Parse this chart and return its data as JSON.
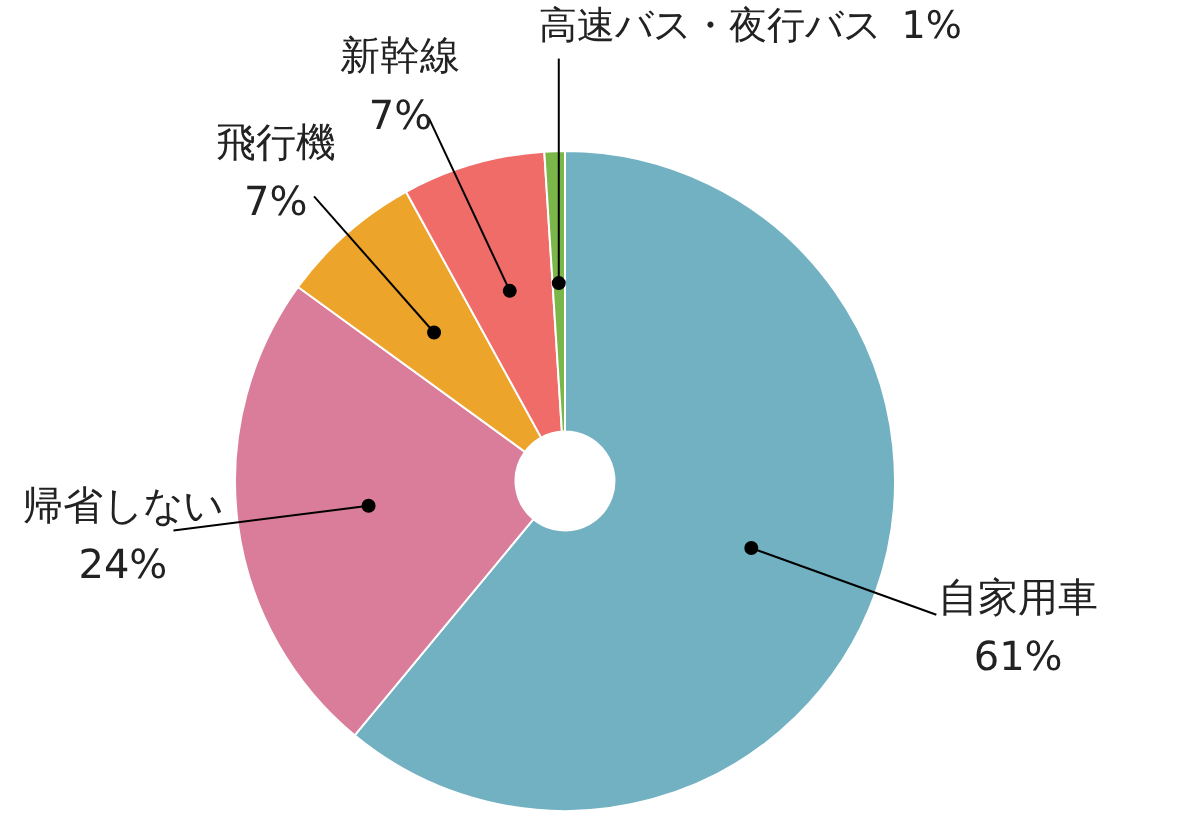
{
  "chart_data": {
    "type": "donut",
    "categories": [
      "自家用車",
      "帰省しない",
      "飛行機",
      "新幹線",
      "高速バス・夜行バス"
    ],
    "values": [
      61,
      24,
      7,
      7,
      1
    ],
    "value_labels": [
      "61%",
      "24%",
      "7%",
      "7%",
      "1%"
    ],
    "colors": [
      "#72b1c2",
      "#d97d9b",
      "#eda42a",
      "#f06c68",
      "#7ab648"
    ]
  }
}
